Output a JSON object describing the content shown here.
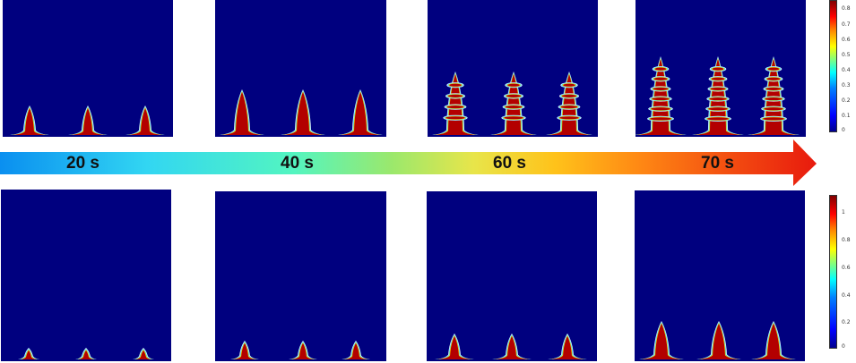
{
  "time_labels": [
    "20 s",
    "40 s",
    "60 s",
    "70 s"
  ],
  "colorbar_top": {
    "ticks": [
      "0.8",
      "0.7",
      "0.6",
      "0.5",
      "0.4",
      "0.3",
      "0.2",
      "0.1",
      "0"
    ]
  },
  "colorbar_bottom": {
    "ticks": [
      "1",
      "0.8",
      "0.6",
      "0.4",
      "0.2",
      "0"
    ]
  },
  "colors": {
    "background_field": "#00007f",
    "dendrite_core": "#b30000",
    "interface_outer": "#eef6ff",
    "interface_mid": "#33ddff",
    "interface_inner": "#ffdd00",
    "arrow_gradient": [
      "#0a8ff0",
      "#32d6f2",
      "#53f5c0",
      "#9be86c",
      "#e8e54a",
      "#ffc21a",
      "#ff8a14",
      "#f24a10",
      "#e81a0e"
    ]
  }
}
